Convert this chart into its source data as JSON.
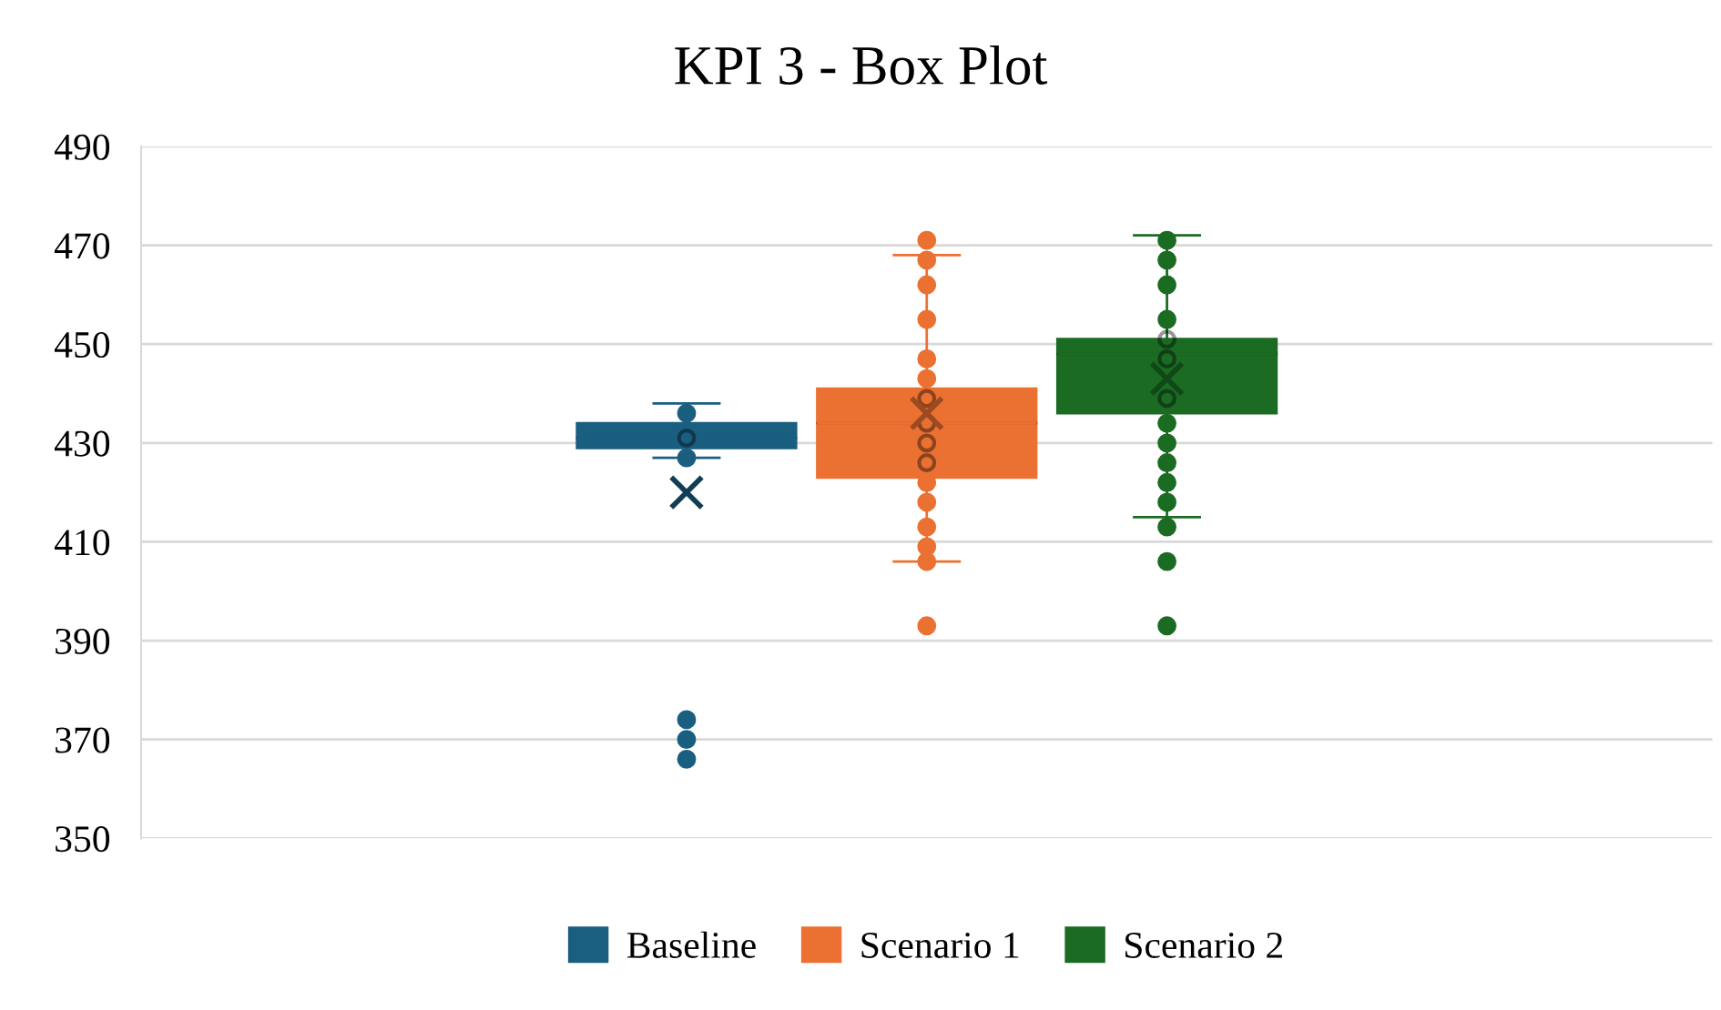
{
  "chart_data": {
    "type": "box",
    "title": "KPI 3 - Box Plot",
    "categories": [
      null
    ],
    "series": [
      {
        "name": "Baseline",
        "type": "box",
        "color": "#1a5e80",
        "boxes": [
          {
            "low": 427,
            "q1": 429,
            "median": 431,
            "q3": 434,
            "high": 438,
            "mean": 420,
            "outliers": [
              436,
              431,
              427,
              374,
              370,
              366
            ]
          }
        ]
      },
      {
        "name": "Scenario 1",
        "type": "box",
        "color": "#eb7132",
        "boxes": [
          {
            "low": 406,
            "q1": 423,
            "median": 434,
            "q3": 441,
            "high": 468,
            "mean": 436,
            "outliers": [
              471,
              467,
              462,
              455,
              447,
              443,
              439,
              434,
              430,
              426,
              422,
              418,
              413,
              409,
              406,
              393
            ]
          }
        ]
      },
      {
        "name": "Scenario 2",
        "type": "box",
        "color": "#1b6b23",
        "boxes": [
          {
            "low": 415,
            "q1": 436,
            "median": 448,
            "q3": 451,
            "high": 472,
            "mean": 443,
            "outliers": [
              471,
              467,
              462,
              455,
              451,
              447,
              439,
              434,
              430,
              426,
              422,
              418,
              413,
              406,
              393
            ]
          }
        ]
      }
    ],
    "ylim": [
      350,
      490
    ],
    "yticks": [
      350,
      370,
      390,
      410,
      430,
      450,
      470,
      490
    ],
    "grid": "y",
    "legend": "bottom",
    "marker": "circle",
    "tick_labels": "y"
  }
}
